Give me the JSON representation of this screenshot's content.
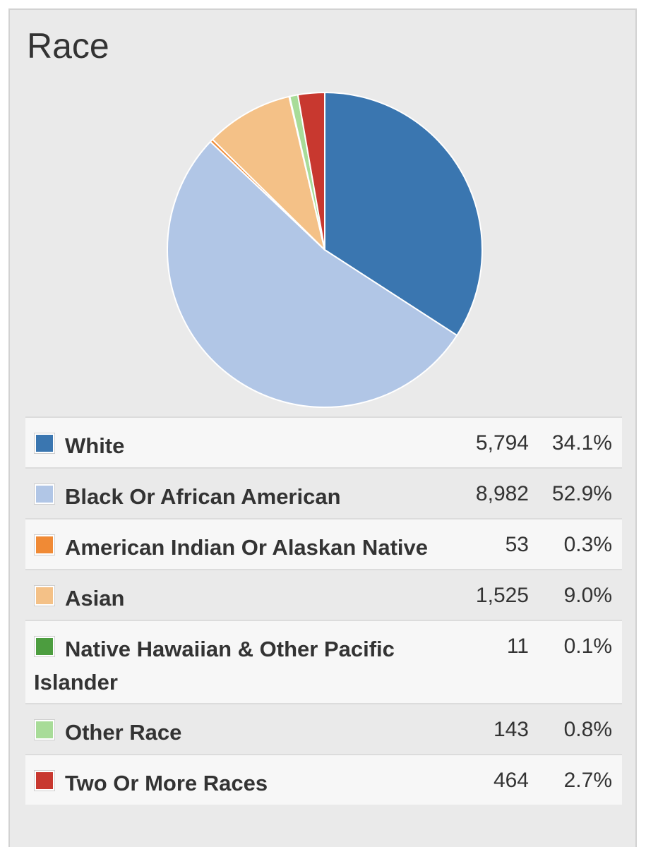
{
  "title": "Race",
  "chart_data": {
    "type": "pie",
    "title": "Race",
    "categories": [
      "White",
      "Black Or African American",
      "American Indian Or Alaskan Native",
      "Asian",
      "Native Hawaiian & Other Pacific Islander",
      "Other Race",
      "Two Or More Races"
    ],
    "values": [
      5794,
      8982,
      53,
      1525,
      11,
      143,
      464
    ],
    "percents": [
      "34.1%",
      "52.9%",
      "0.3%",
      "9.0%",
      "0.1%",
      "0.8%",
      "2.7%"
    ],
    "counts": [
      "5,794",
      "8,982",
      "53",
      "1,525",
      "11",
      "143",
      "464"
    ],
    "colors": [
      "#3a76b0",
      "#b1c6e6",
      "#f08a35",
      "#f4c187",
      "#4c9d3f",
      "#a8dc98",
      "#c8382f"
    ],
    "legend_position": "bottom"
  }
}
